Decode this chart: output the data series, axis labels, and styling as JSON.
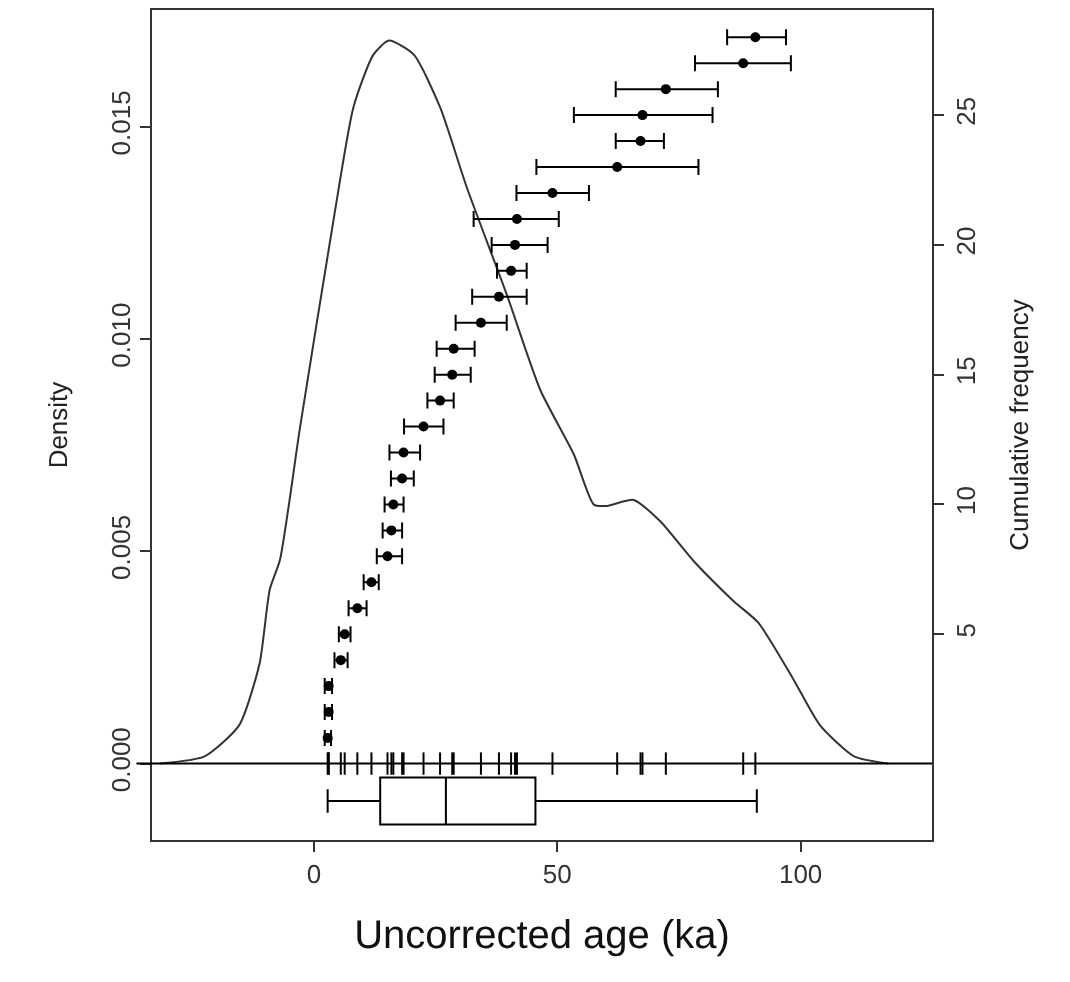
{
  "chart_data": [
    {
      "type": "line",
      "ylabel": "Density",
      "y2label": "Cumulative frequency",
      "tick_labels": "y",
      "xlim": [
        -33.3,
        127
      ],
      "xticks": [
        0,
        50,
        100
      ],
      "ylim": [
        -0.0018,
        0.01775
      ],
      "yticks": [
        {
          "value": 0,
          "label": "0.000"
        },
        {
          "value": 0.005,
          "label": "0.005"
        },
        {
          "value": 0.01,
          "label": "0.010"
        },
        {
          "value": 0.015,
          "label": "0.015"
        }
      ],
      "y2lim": [
        -2.93,
        29.05
      ],
      "y2ticks": [
        5,
        10,
        15,
        20,
        25
      ],
      "ref_lines": [
        {
          "axis": "y",
          "value": 0,
          "color": "#000000"
        }
      ],
      "series": [
        {
          "color": "#333333",
          "marker": "none",
          "line_style": "solid",
          "x": [
            -31.7,
            -22.5,
            -15.4,
            -11.2,
            -9.1,
            -7,
            -2.9,
            4,
            8.1,
            12.2,
            15.4,
            20.5,
            25.9,
            31.4,
            39.6,
            46.5,
            53.4,
            57.5,
            60.2,
            65.7,
            71.2,
            78.1,
            86.3,
            91.3,
            98.3,
            104,
            111,
            118
          ],
          "values": [
            0,
            0.00017,
            0.0009,
            0.00235,
            0.0041,
            0.0048,
            0.0079,
            0.0128,
            0.01546,
            0.0167,
            0.01703,
            0.0167,
            0.01546,
            0.01357,
            0.01105,
            0.0088,
            0.00728,
            0.0061,
            0.00607,
            0.00621,
            0.0057,
            0.00476,
            0.00382,
            0.00332,
            0.00203,
            0.0009,
            0.00017,
            0
          ]
        },
        {
          "type": "scatter",
          "axis": "y2",
          "color": "#000000",
          "marker": "circle",
          "x": [
            2.8,
            3,
            3,
            5.5,
            6.3,
            8.9,
            11.8,
            15.1,
            15.9,
            16.3,
            18.1,
            18.4,
            22.5,
            25.9,
            28.4,
            28.7,
            34.3,
            38,
            40.5,
            41.3,
            41.7,
            49,
            62.3,
            67.1,
            67.5,
            72.3,
            88.2,
            90.7
          ],
          "values": [
            1,
            2,
            3,
            4,
            5,
            6,
            7,
            8,
            9,
            10,
            11,
            12,
            13,
            14,
            15,
            16,
            17,
            18,
            19,
            20,
            21,
            22,
            23,
            24,
            25,
            26,
            27,
            28
          ],
          "xerrors": [
            [
              2.2,
              3.5
            ],
            [
              2.2,
              3.7
            ],
            [
              2.2,
              3.7
            ],
            [
              4.2,
              6.9
            ],
            [
              5.1,
              7.5
            ],
            [
              7.1,
              10.8
            ],
            [
              10.2,
              13.3
            ],
            [
              12.9,
              18.1
            ],
            [
              14.1,
              18.1
            ],
            [
              14.5,
              18.4
            ],
            [
              15.8,
              20.5
            ],
            [
              15.5,
              21.8
            ],
            [
              18.5,
              26.6
            ],
            [
              23.3,
              28.7
            ],
            [
              24.8,
              32.2
            ],
            [
              25.2,
              33
            ],
            [
              29.1,
              39.6
            ],
            [
              32.5,
              43.7
            ],
            [
              37.6,
              43.7
            ],
            [
              36.5,
              48
            ],
            [
              32.8,
              50.3
            ],
            [
              41.6,
              56.5
            ],
            [
              45.7,
              79
            ],
            [
              62,
              71.9
            ],
            [
              53.4,
              81.9
            ],
            [
              62,
              83
            ],
            [
              78.3,
              98
            ],
            [
              84.9,
              97
            ]
          ]
        }
      ]
    },
    {
      "type": "box",
      "orientation": "horizontal",
      "xlabel": "Uncorrected age (ka)",
      "tick_labels": "x",
      "xlim": [
        -33.3,
        127
      ],
      "xticks": [
        0,
        50,
        100
      ],
      "categories": [
        null
      ],
      "series": [
        {
          "color": "#000000",
          "boxes": [
            {
              "low": 2.8,
              "q1": 13.6,
              "median": 27.1,
              "q3": 45.5,
              "high": 91
            }
          ]
        }
      ]
    }
  ]
}
